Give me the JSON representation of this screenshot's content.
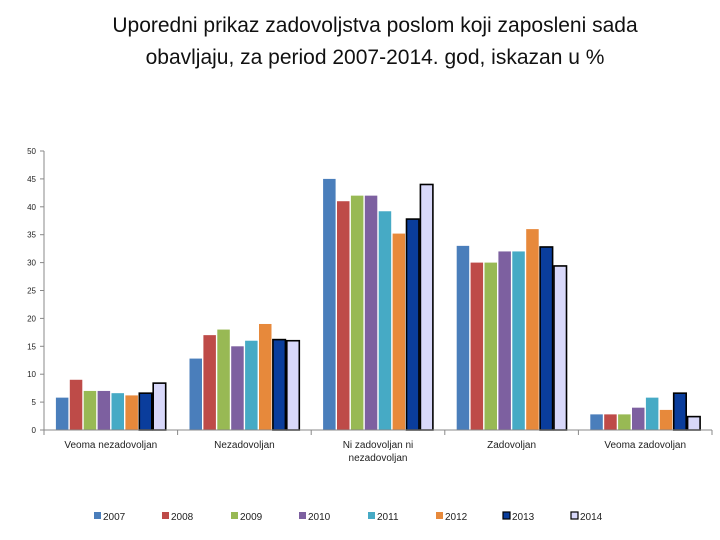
{
  "chart_data": {
    "type": "bar",
    "title": "Uporedni prikaz zadovoljstva poslom koji zaposleni sada\nobavljaju, za period 2007-2014. god, iskazan u %",
    "xlabel": "",
    "ylabel": "",
    "ylim": [
      0,
      50
    ],
    "yticks": [
      "0",
      "5",
      "10",
      "15",
      "20",
      "25",
      "30",
      "35",
      "40",
      "45",
      "50"
    ],
    "categories": [
      [
        "Veoma nezadovoljan"
      ],
      [
        "Nezadovoljan"
      ],
      [
        "Ni zadovoljan ni",
        "nezadovoljan"
      ],
      [
        "Zadovoljan"
      ],
      [
        "Veoma zadovoljan"
      ]
    ],
    "series": [
      {
        "name": "2007",
        "color": "#4a7ebb",
        "values": [
          5.8,
          12.8,
          45.0,
          33.0,
          2.8
        ]
      },
      {
        "name": "2008",
        "color": "#be4b48",
        "values": [
          9.0,
          17.0,
          41.0,
          30.0,
          2.8
        ]
      },
      {
        "name": "2009",
        "color": "#98b954",
        "values": [
          7.0,
          18.0,
          42.0,
          30.0,
          2.8
        ]
      },
      {
        "name": "2010",
        "color": "#7d60a0",
        "values": [
          7.0,
          15.0,
          42.0,
          32.0,
          4.0
        ]
      },
      {
        "name": "2011",
        "color": "#46aac5",
        "values": [
          6.6,
          16.0,
          39.2,
          32.0,
          5.8
        ]
      },
      {
        "name": "2012",
        "color": "#e7893b",
        "values": [
          6.2,
          19.0,
          35.2,
          36.0,
          3.6
        ]
      },
      {
        "name": "2013",
        "color": "#0a3d9c",
        "values": [
          6.6,
          16.2,
          37.8,
          32.8,
          6.6
        ]
      },
      {
        "name": "2014",
        "color": "#d8d8fa",
        "values": [
          8.4,
          16.0,
          44.0,
          29.4,
          2.4
        ]
      }
    ],
    "grid": false,
    "legend_position": "bottom"
  }
}
